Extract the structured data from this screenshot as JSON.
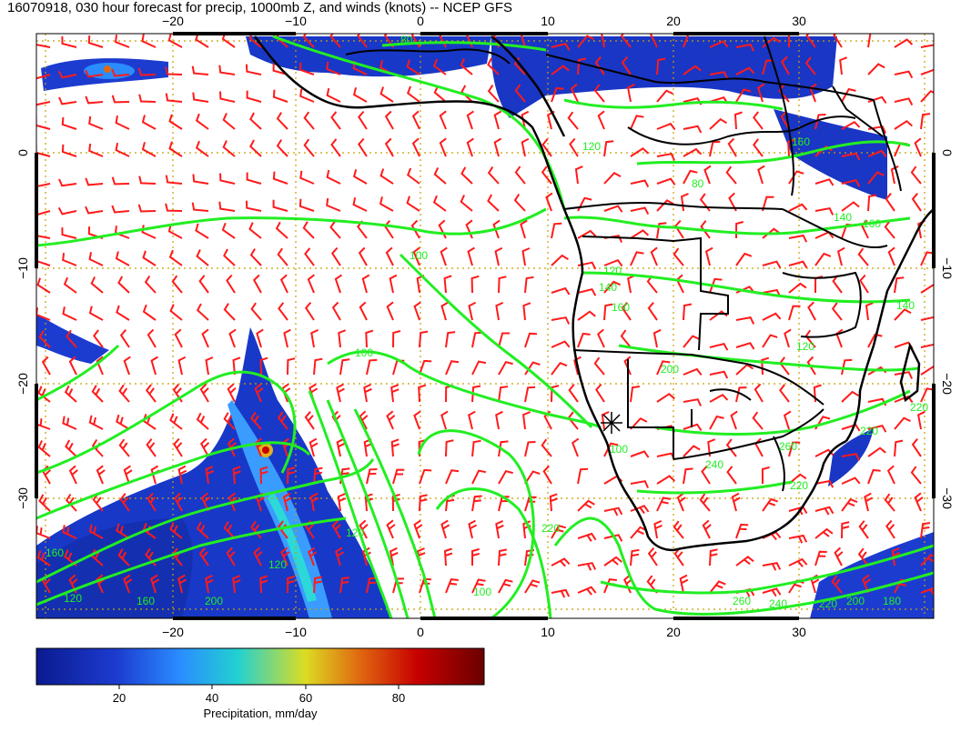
{
  "title": "16070918, 030 hour forecast for precip, 1000mb Z, and winds (knots) -- NCEP GFS",
  "map": {
    "lon_range": [
      -30,
      40
    ],
    "lat_range": [
      -40,
      9
    ],
    "grid": "dotted",
    "grid_color": "#c8a000",
    "wind_barb_color": "#ff1a1a",
    "contour_color": "#22ee22",
    "coast_color": "#000000",
    "precip_palette": [
      "#0b1a8f",
      "#1c3cd0",
      "#2a8cff",
      "#22d1d1",
      "#dcdc22",
      "#e06a10",
      "#c80000",
      "#6a0000"
    ]
  },
  "axes": {
    "x_ticks": [
      "−20",
      "−10",
      "0",
      "10",
      "20",
      "30"
    ],
    "y_ticks": [
      "0",
      "−10",
      "−20",
      "−30"
    ]
  },
  "contour_labels": [
    "80",
    "80",
    "140",
    "160",
    "120",
    "140",
    "160",
    "100",
    "100",
    "120",
    "200",
    "240",
    "260",
    "220",
    "220",
    "220",
    "120",
    "160",
    "120",
    "200",
    "160",
    "120",
    "100",
    "220",
    "260",
    "240",
    "220",
    "200",
    "180",
    "140",
    "120",
    "160",
    "100"
  ],
  "colorbar": {
    "ticks": [
      "20",
      "40",
      "60",
      "80"
    ],
    "label": "Precipitation, mm/day"
  }
}
